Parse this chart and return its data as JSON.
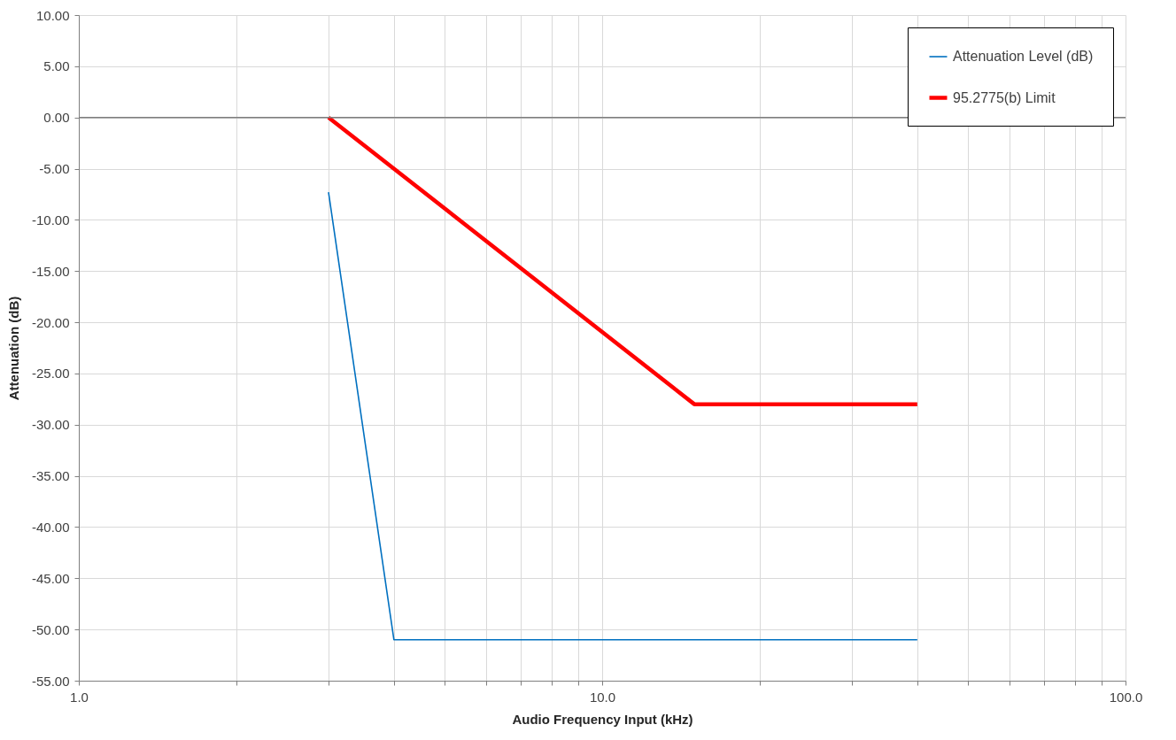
{
  "chart_data": {
    "type": "line",
    "xlabel": "Audio Frequency Input (kHz)",
    "ylabel": "Attenuation (dB)",
    "log": "x",
    "grid": true,
    "legend": "top right",
    "line_style": "solid",
    "marker": "none",
    "xlim": [
      1,
      100
    ],
    "xticks": [
      {
        "value": 1,
        "label": "1.0"
      },
      {
        "value": 2,
        "label": null
      },
      {
        "value": 3,
        "label": null
      },
      {
        "value": 4,
        "label": null
      },
      {
        "value": 5,
        "label": null
      },
      {
        "value": 6,
        "label": null
      },
      {
        "value": 7,
        "label": null
      },
      {
        "value": 8,
        "label": null
      },
      {
        "value": 9,
        "label": null
      },
      {
        "value": 10,
        "label": "10.0"
      },
      {
        "value": 20,
        "label": null
      },
      {
        "value": 30,
        "label": null
      },
      {
        "value": 40,
        "label": null
      },
      {
        "value": 50,
        "label": null
      },
      {
        "value": 60,
        "label": null
      },
      {
        "value": 70,
        "label": null
      },
      {
        "value": 80,
        "label": null
      },
      {
        "value": 90,
        "label": null
      },
      {
        "value": 100,
        "label": "100.0"
      }
    ],
    "ylim": [
      -55,
      10
    ],
    "yticks": [
      {
        "value": -55,
        "label": "-55.00"
      },
      {
        "value": -50,
        "label": "-50.00"
      },
      {
        "value": -45,
        "label": "-45.00"
      },
      {
        "value": -40,
        "label": "-40.00"
      },
      {
        "value": -35,
        "label": "-35.00"
      },
      {
        "value": -30,
        "label": "-30.00"
      },
      {
        "value": -25,
        "label": "-25.00"
      },
      {
        "value": -20,
        "label": "-20.00"
      },
      {
        "value": -15,
        "label": "-15.00"
      },
      {
        "value": -10,
        "label": "-10.00"
      },
      {
        "value": -5,
        "label": "-5.00"
      },
      {
        "value": 0,
        "label": "0.00"
      },
      {
        "value": 5,
        "label": "5.00"
      },
      {
        "value": 10,
        "label": "10.00"
      }
    ],
    "ref_lines": [
      {
        "axis": "y",
        "value": 0,
        "label": null,
        "color": "#7f7f7f"
      }
    ],
    "series": [
      {
        "name": "Attenuation Level (dB)",
        "color": "#0070c0",
        "x": [
          3,
          4,
          40
        ],
        "values": [
          -7.3,
          -51,
          -51
        ]
      },
      {
        "name": "95.2775(b) Limit",
        "color": "#ff0000",
        "x": [
          3,
          15,
          40
        ],
        "values": [
          0,
          -28,
          -28
        ]
      }
    ]
  }
}
